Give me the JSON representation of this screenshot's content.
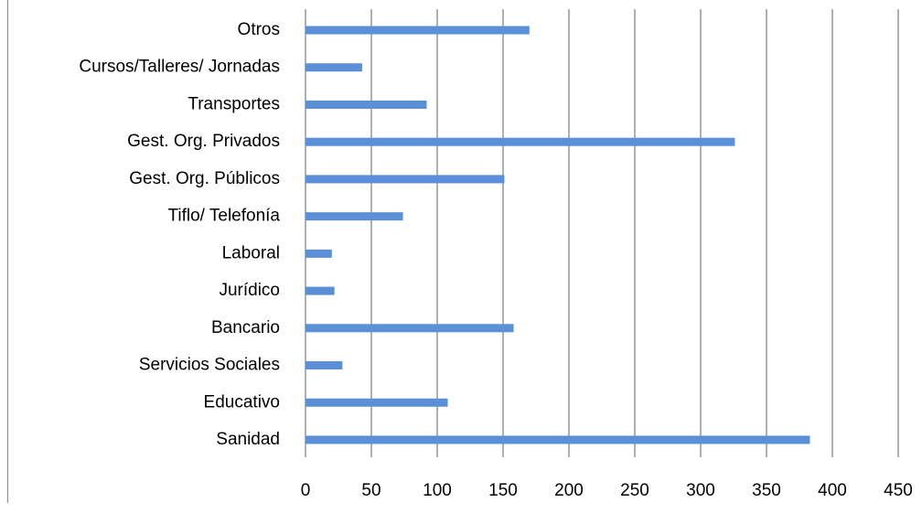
{
  "chart_data": {
    "type": "bar",
    "orientation": "horizontal",
    "categories": [
      "Sanidad",
      "Educativo",
      "Servicios Sociales",
      "Bancario",
      "Jurídico",
      "Laboral",
      "Tiflo/ Telefonía",
      "Gest. Org. Públicos",
      "Gest. Org. Privados",
      "Transportes",
      "Cursos/Talleres/ Jornadas",
      "Otros"
    ],
    "values": [
      383,
      108,
      28,
      158,
      22,
      20,
      74,
      151,
      326,
      92,
      43,
      170
    ],
    "color": "#5b8fd8",
    "xlim": [
      0,
      450
    ],
    "xticks": [
      0,
      50,
      100,
      150,
      200,
      250,
      300,
      350,
      400,
      450
    ],
    "grid": true
  }
}
